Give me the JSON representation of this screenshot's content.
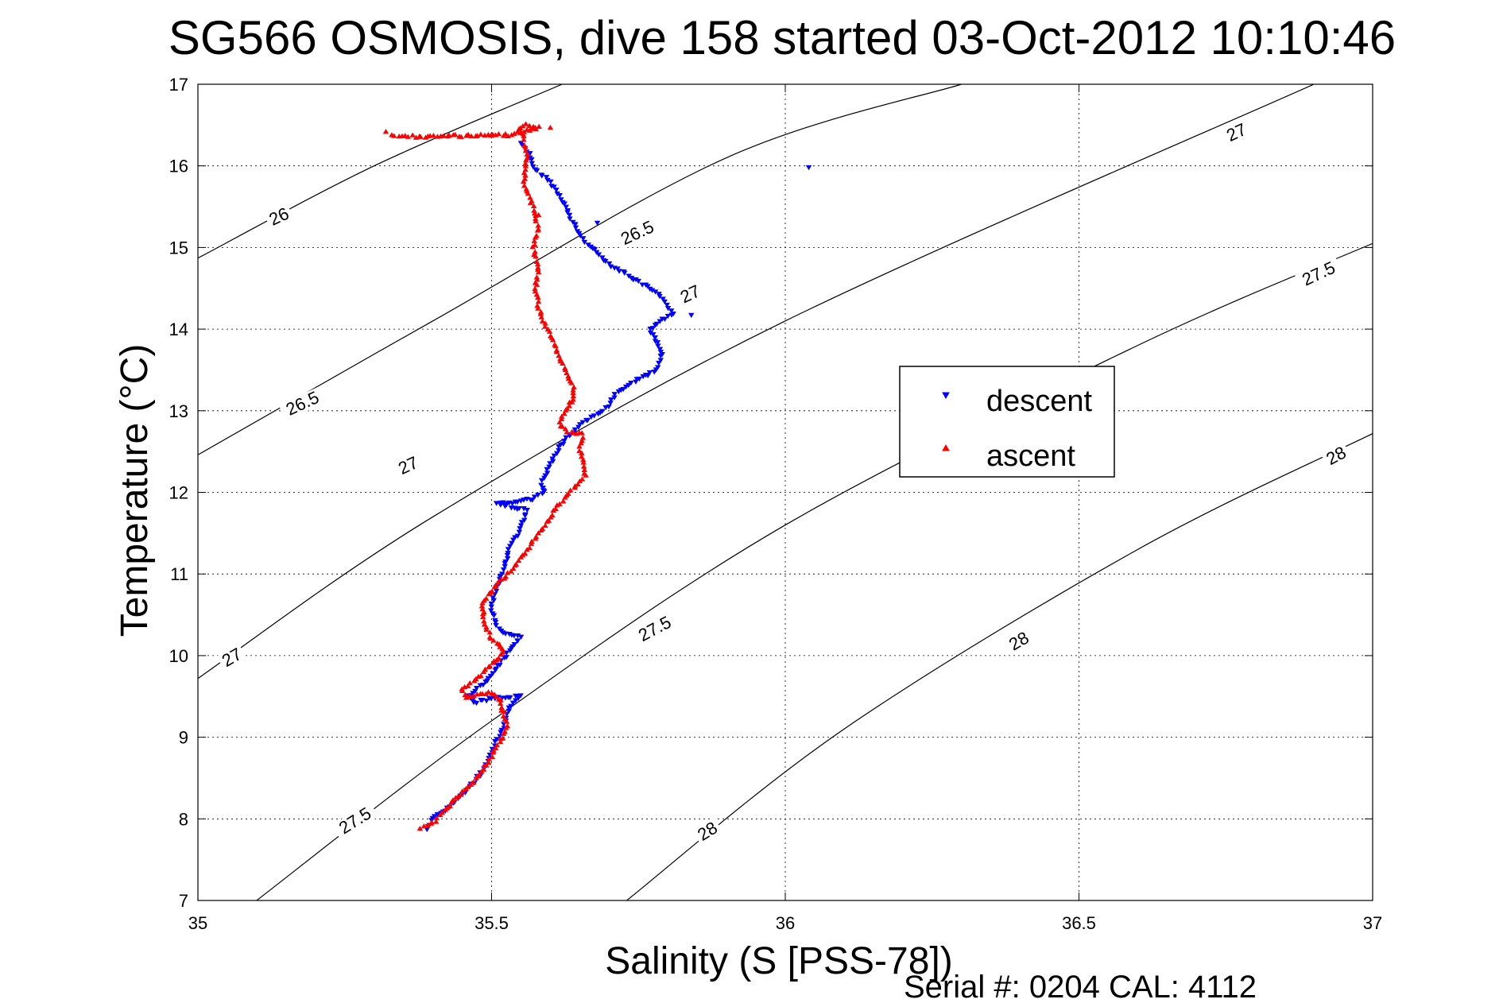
{
  "chart_data": {
    "type": "scatter",
    "title": "SG566 OSMOSIS, dive 158 started 03-Oct-2012 10:10:46",
    "xlabel": "Salinity (S [PSS-78])",
    "ylabel": "Temperature (°C)",
    "xlim": [
      35,
      37
    ],
    "ylim": [
      7,
      17
    ],
    "xticks": [
      "35",
      "35.5",
      "36",
      "36.5",
      "37"
    ],
    "yticks": [
      "7",
      "8",
      "9",
      "10",
      "11",
      "12",
      "13",
      "14",
      "15",
      "16",
      "17"
    ],
    "grid": true,
    "legend_position": "right-middle",
    "footer": "Serial #: 0204  CAL: 4112",
    "contours": [
      {
        "label": "26",
        "points": [
          [
            35.0,
            14.87
          ],
          [
            35.3,
            16.0
          ],
          [
            35.62,
            17.0
          ]
        ]
      },
      {
        "label": "26.5",
        "points": [
          [
            35.0,
            12.46
          ],
          [
            35.4,
            14.1
          ],
          [
            35.9,
            16.1
          ],
          [
            36.3,
            17.0
          ]
        ]
      },
      {
        "label": "27",
        "points": [
          [
            35.0,
            9.72
          ],
          [
            35.4,
            11.7
          ],
          [
            36.0,
            14.1
          ],
          [
            36.9,
            17.0
          ]
        ]
      },
      {
        "label": "27.5",
        "points": [
          [
            35.1,
            7.0
          ],
          [
            35.5,
            9.2
          ],
          [
            36.0,
            11.6
          ],
          [
            36.6,
            13.8
          ],
          [
            37.0,
            15.05
          ]
        ]
      },
      {
        "label": "28",
        "points": [
          [
            35.73,
            7.0
          ],
          [
            36.1,
            9.1
          ],
          [
            36.6,
            11.3
          ],
          [
            37.0,
            12.72
          ]
        ]
      }
    ],
    "contour_labels": [
      {
        "text": "26",
        "s": 35.14,
        "t": 15.35,
        "angle": -25
      },
      {
        "text": "26.5",
        "s": 35.75,
        "t": 15.15,
        "angle": -25
      },
      {
        "text": "27",
        "s": 36.77,
        "t": 16.38,
        "angle": -25
      },
      {
        "text": "26.5",
        "s": 35.18,
        "t": 13.06,
        "angle": -25
      },
      {
        "text": "27",
        "s": 35.36,
        "t": 12.3,
        "angle": -25
      },
      {
        "text": "27",
        "s": 35.84,
        "t": 14.4,
        "angle": -25
      },
      {
        "text": "27.5",
        "s": 36.91,
        "t": 14.65,
        "angle": -25
      },
      {
        "text": "27",
        "s": 35.06,
        "t": 9.95,
        "angle": -30
      },
      {
        "text": "27.5",
        "s": 35.78,
        "t": 10.3,
        "angle": -28
      },
      {
        "text": "28",
        "s": 36.4,
        "t": 10.15,
        "angle": -30
      },
      {
        "text": "28",
        "s": 36.94,
        "t": 12.42,
        "angle": -28
      },
      {
        "text": "27.5",
        "s": 35.27,
        "t": 7.95,
        "angle": -32
      },
      {
        "text": "28",
        "s": 35.87,
        "t": 7.82,
        "angle": -32
      }
    ],
    "series": [
      {
        "name": "descent",
        "color": "#0000ff",
        "marker": "triangle-down",
        "path": [
          [
            35.55,
            16.28
          ],
          [
            35.565,
            16.15
          ],
          [
            35.57,
            15.98
          ],
          [
            35.6,
            15.8
          ],
          [
            35.62,
            15.6
          ],
          [
            35.635,
            15.35
          ],
          [
            35.655,
            15.1
          ],
          [
            35.7,
            14.8
          ],
          [
            35.78,
            14.45
          ],
          [
            35.81,
            14.2
          ],
          [
            35.77,
            14.0
          ],
          [
            35.79,
            13.7
          ],
          [
            35.78,
            13.5
          ],
          [
            35.73,
            13.3
          ],
          [
            35.71,
            13.2
          ],
          [
            35.7,
            13.05
          ],
          [
            35.68,
            12.95
          ],
          [
            35.655,
            12.85
          ],
          [
            35.635,
            12.72
          ],
          [
            35.615,
            12.55
          ],
          [
            35.6,
            12.35
          ],
          [
            35.585,
            12.1
          ],
          [
            35.59,
            12.0
          ],
          [
            35.57,
            11.92
          ],
          [
            35.53,
            11.86
          ],
          [
            35.51,
            11.86
          ],
          [
            35.56,
            11.78
          ],
          [
            35.55,
            11.55
          ],
          [
            35.53,
            11.3
          ],
          [
            35.52,
            11.05
          ],
          [
            35.51,
            10.85
          ],
          [
            35.5,
            10.6
          ],
          [
            35.505,
            10.4
          ],
          [
            35.515,
            10.3
          ],
          [
            35.55,
            10.22
          ],
          [
            35.54,
            10.15
          ],
          [
            35.53,
            10.05
          ],
          [
            35.515,
            9.9
          ],
          [
            35.5,
            9.75
          ],
          [
            35.48,
            9.62
          ],
          [
            35.46,
            9.5
          ],
          [
            35.47,
            9.42
          ],
          [
            35.5,
            9.48
          ],
          [
            35.55,
            9.5
          ],
          [
            35.53,
            9.35
          ],
          [
            35.525,
            9.2
          ],
          [
            35.515,
            9.05
          ],
          [
            35.505,
            8.9
          ],
          [
            35.495,
            8.75
          ],
          [
            35.485,
            8.6
          ],
          [
            35.47,
            8.45
          ],
          [
            35.45,
            8.3
          ],
          [
            35.43,
            8.15
          ],
          [
            35.4,
            8.0
          ],
          [
            35.39,
            7.87
          ]
        ],
        "extra_points": [
          [
            36.04,
            15.98
          ],
          [
            35.68,
            15.3
          ],
          [
            35.84,
            14.17
          ]
        ]
      },
      {
        "name": "ascent",
        "color": "#ff0000",
        "marker": "triangle-up",
        "path": [
          [
            35.38,
            7.88
          ],
          [
            35.4,
            7.95
          ],
          [
            35.42,
            8.1
          ],
          [
            35.44,
            8.25
          ],
          [
            35.46,
            8.4
          ],
          [
            35.48,
            8.55
          ],
          [
            35.495,
            8.7
          ],
          [
            35.505,
            8.85
          ],
          [
            35.52,
            9.0
          ],
          [
            35.525,
            9.15
          ],
          [
            35.52,
            9.3
          ],
          [
            35.515,
            9.45
          ],
          [
            35.5,
            9.55
          ],
          [
            35.48,
            9.52
          ],
          [
            35.455,
            9.5
          ],
          [
            35.45,
            9.6
          ],
          [
            35.475,
            9.7
          ],
          [
            35.49,
            9.82
          ],
          [
            35.51,
            9.95
          ],
          [
            35.52,
            10.08
          ],
          [
            35.5,
            10.2
          ],
          [
            35.49,
            10.35
          ],
          [
            35.485,
            10.5
          ],
          [
            35.485,
            10.65
          ],
          [
            35.5,
            10.8
          ],
          [
            35.52,
            10.95
          ],
          [
            35.54,
            11.1
          ],
          [
            35.56,
            11.3
          ],
          [
            35.58,
            11.5
          ],
          [
            35.6,
            11.7
          ],
          [
            35.62,
            11.9
          ],
          [
            35.64,
            12.05
          ],
          [
            35.66,
            12.2
          ],
          [
            35.655,
            12.4
          ],
          [
            35.65,
            12.55
          ],
          [
            35.655,
            12.72
          ],
          [
            35.63,
            12.75
          ],
          [
            35.615,
            12.85
          ],
          [
            35.625,
            13.0
          ],
          [
            35.64,
            13.15
          ],
          [
            35.64,
            13.3
          ],
          [
            35.625,
            13.5
          ],
          [
            35.61,
            13.75
          ],
          [
            35.595,
            14.0
          ],
          [
            35.58,
            14.25
          ],
          [
            35.575,
            14.5
          ],
          [
            35.58,
            14.8
          ],
          [
            35.57,
            15.0
          ],
          [
            35.58,
            15.2
          ],
          [
            35.57,
            15.5
          ],
          [
            35.555,
            15.8
          ],
          [
            35.56,
            16.1
          ],
          [
            35.555,
            16.35
          ],
          [
            35.545,
            16.45
          ],
          [
            35.56,
            16.5
          ],
          [
            35.58,
            16.47
          ],
          [
            35.53,
            16.38
          ],
          [
            35.45,
            16.37
          ],
          [
            35.37,
            16.36
          ],
          [
            35.33,
            16.38
          ]
        ],
        "extra_points": [
          [
            35.6,
            16.47
          ],
          [
            35.32,
            16.42
          ],
          [
            35.58,
            15.4
          ]
        ]
      }
    ]
  }
}
